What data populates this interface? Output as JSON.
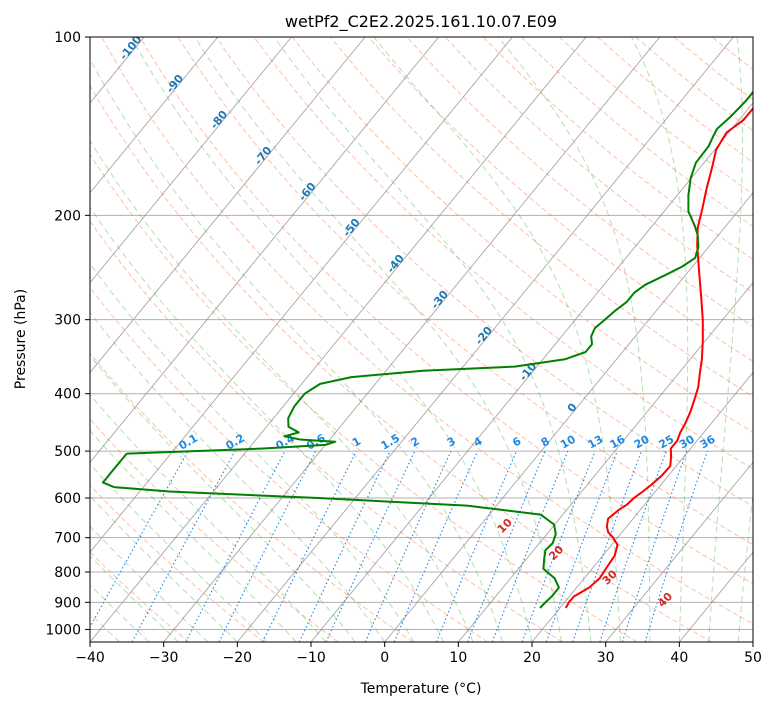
{
  "chart_data": {
    "type": "line",
    "title": "wetPf2_C2E2.2025.161.10.07.E09",
    "xlabel": "Temperature (°C)",
    "ylabel": "Pressure (hPa)",
    "xlim": [
      -40,
      50
    ],
    "ylim": [
      1050,
      100
    ],
    "yscale": "log",
    "x_ticks": [
      -40,
      -30,
      -20,
      -10,
      0,
      10,
      20,
      30,
      40,
      50
    ],
    "y_ticks": [
      100,
      200,
      300,
      400,
      500,
      600,
      700,
      800,
      900,
      1000
    ],
    "grid": true,
    "skew_T": true,
    "colors": {
      "temperature": "#ff0000",
      "dewpoint": "#008000",
      "isotherm": "#808080",
      "dry_adiabat": "#ff7f50",
      "moist_adiabat": "#2ca02c",
      "mixing_ratio": "#1e88e5",
      "isotherm_label": "#1f77b4",
      "moist_label": "#d62728"
    },
    "series": [
      {
        "name": "",
        "role": "temperature",
        "points": [
          [
            20.8,
            920
          ],
          [
            20.6,
            900
          ],
          [
            20.6,
            880
          ],
          [
            21.7,
            850
          ],
          [
            22.1,
            820
          ],
          [
            21.8,
            780
          ],
          [
            21.6,
            750
          ],
          [
            20.8,
            720
          ],
          [
            19.4,
            700
          ],
          [
            18.1,
            685
          ],
          [
            17.3,
            670
          ],
          [
            16.6,
            650
          ],
          [
            17.1,
            628
          ],
          [
            17.6,
            615
          ],
          [
            17.8,
            600
          ],
          [
            18.3,
            585
          ],
          [
            18.7,
            570
          ],
          [
            19.1,
            550
          ],
          [
            19.2,
            530
          ],
          [
            18.2,
            510
          ],
          [
            17.3,
            495
          ],
          [
            17.3,
            480
          ],
          [
            16.8,
            465
          ],
          [
            16.5,
            450
          ],
          [
            15.9,
            430
          ],
          [
            15.1,
            410
          ],
          [
            14.2,
            390
          ],
          [
            12.9,
            370
          ],
          [
            11.6,
            350
          ],
          [
            9.6,
            325
          ],
          [
            7.3,
            300
          ],
          [
            4.6,
            275
          ],
          [
            1.6,
            250
          ],
          [
            -1.7,
            225
          ],
          [
            -3.6,
            210
          ],
          [
            -5.1,
            195
          ],
          [
            -6.8,
            180
          ],
          [
            -8.5,
            165
          ],
          [
            -9.8,
            155
          ],
          [
            -10.3,
            145
          ],
          [
            -9.4,
            138
          ],
          [
            -9.4,
            130
          ],
          [
            -8.8,
            122
          ],
          [
            -6.9,
            115
          ],
          [
            -5.0,
            110
          ],
          [
            -2.4,
            104
          ],
          [
            -0.3,
            100
          ]
        ]
      },
      {
        "name": "",
        "role": "dewpoint",
        "points": [
          [
            17.3,
            920
          ],
          [
            17.4,
            900
          ],
          [
            17.6,
            880
          ],
          [
            17.6,
            850
          ],
          [
            16.0,
            820
          ],
          [
            13.4,
            790
          ],
          [
            12.4,
            760
          ],
          [
            11.6,
            735
          ],
          [
            11.8,
            715
          ],
          [
            11.2,
            690
          ],
          [
            9.9,
            665
          ],
          [
            7.0,
            640
          ],
          [
            -4.0,
            618
          ],
          [
            -25.0,
            600
          ],
          [
            -46.0,
            585
          ],
          [
            -54.0,
            575
          ],
          [
            -56.0,
            565
          ],
          [
            -56.0,
            555
          ],
          [
            -56.0,
            540
          ],
          [
            -56.0,
            520
          ],
          [
            -56.0,
            505
          ],
          [
            -38.0,
            495
          ],
          [
            -30.0,
            488
          ],
          [
            -29.0,
            482
          ],
          [
            -34.0,
            478
          ],
          [
            -36.5,
            472
          ],
          [
            -35.0,
            465
          ],
          [
            -37.0,
            455
          ],
          [
            -38.0,
            440
          ],
          [
            -38.5,
            420
          ],
          [
            -38.5,
            400
          ],
          [
            -37.5,
            385
          ],
          [
            -34.0,
            375
          ],
          [
            -25.0,
            366
          ],
          [
            -13.0,
            360
          ],
          [
            -7.0,
            350
          ],
          [
            -5.0,
            340
          ],
          [
            -5.0,
            330
          ],
          [
            -6.0,
            320
          ],
          [
            -6.4,
            310
          ],
          [
            -6.0,
            300
          ],
          [
            -5.6,
            290
          ],
          [
            -5.0,
            280
          ],
          [
            -5.0,
            270
          ],
          [
            -4.4,
            262
          ],
          [
            -2.7,
            252
          ],
          [
            -1.4,
            244
          ],
          [
            -0.6,
            236
          ],
          [
            -1.4,
            226
          ],
          [
            -2.8,
            216
          ],
          [
            -4.3,
            208
          ],
          [
            -6.7,
            197
          ],
          [
            -8.5,
            185
          ],
          [
            -10.1,
            173
          ],
          [
            -11.1,
            163
          ],
          [
            -11.2,
            153
          ],
          [
            -11.7,
            147
          ],
          [
            -12.0,
            143
          ],
          [
            -11.5,
            136
          ],
          [
            -11.2,
            128
          ],
          [
            -11.2,
            121
          ],
          [
            -11.0,
            116
          ],
          [
            -9.8,
            112
          ],
          [
            -8.6,
            108
          ],
          [
            -6.9,
            104
          ],
          [
            -6.1,
            100
          ]
        ]
      }
    ],
    "isotherm_labels": [
      "-100",
      "-90",
      "-80",
      "-70",
      "-60",
      "-50",
      "-40",
      "-30",
      "-20",
      "-10",
      "0"
    ],
    "mixing_ratio_labels": [
      "0.1",
      "0.2",
      "0.4",
      "0.6",
      "1",
      "1.5",
      "2",
      "3",
      "4",
      "6",
      "8",
      "10",
      "13",
      "16",
      "20",
      "25",
      "30",
      "36"
    ],
    "moist_adiabat_labels": [
      "10",
      "20",
      "30",
      "40"
    ]
  }
}
